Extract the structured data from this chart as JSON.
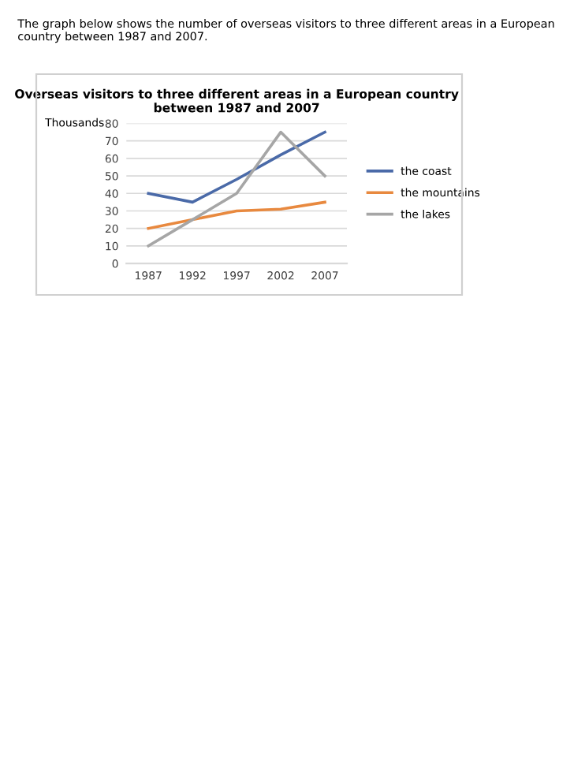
{
  "chart_data": {
    "type": "line",
    "title": "Overseas visitors to three different areas in a European country between 1987 and 2007",
    "ylabel": "Thousands",
    "annotations": [
      "The graph below shows the number of overseas visitors to three different areas in a European country between 1987 and 2007."
    ],
    "categories": [
      "1987",
      "1992",
      "1997",
      "2002",
      "2007"
    ],
    "series": [
      {
        "name": "the coast",
        "color": "#4a6aa8",
        "values": [
          40,
          35,
          48,
          62,
          75
        ]
      },
      {
        "name": "the mountains",
        "color": "#e8893f",
        "values": [
          20,
          25,
          30,
          31,
          35
        ]
      },
      {
        "name": "the lakes",
        "color": "#a6a6a6",
        "values": [
          10,
          25,
          40,
          75,
          50
        ]
      }
    ],
    "ylim": [
      0,
      80
    ],
    "yticks": [
      0,
      10,
      20,
      30,
      40,
      50,
      60,
      70,
      80
    ],
    "grid": "y",
    "legend": "right",
    "marker": "none",
    "line_style": "solid"
  }
}
